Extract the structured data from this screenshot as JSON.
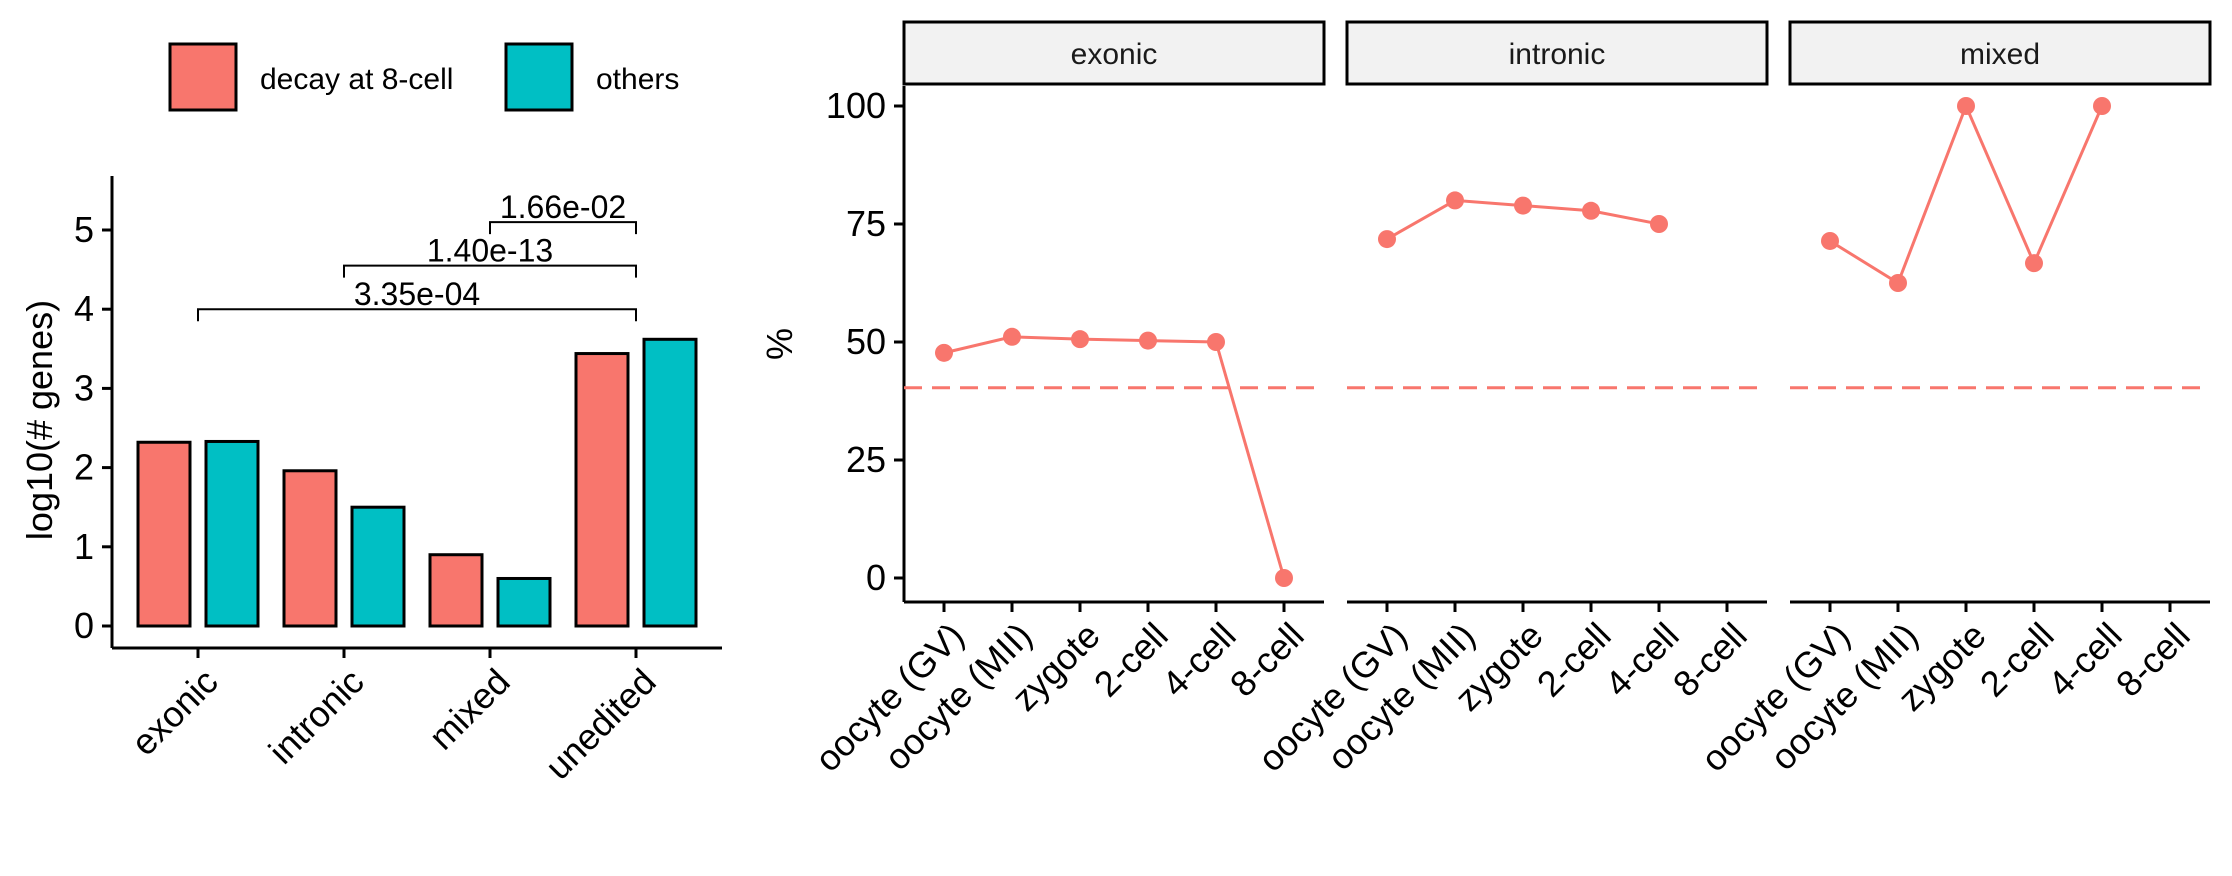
{
  "legend": {
    "items": [
      {
        "label": "decay at 8-cell",
        "color": "#F8766D"
      },
      {
        "label": "others",
        "color": "#00BFC4"
      }
    ]
  },
  "chart_data": [
    {
      "type": "bar",
      "xlabel": "",
      "ylabel": "log10(# genes)",
      "ylim": [
        0,
        5.6
      ],
      "yticks": [
        0,
        1,
        2,
        3,
        4,
        5
      ],
      "categories": [
        "exonic",
        "intronic",
        "mixed",
        "unedited"
      ],
      "series": [
        {
          "name": "decay at 8-cell",
          "color": "#F8766D",
          "values": [
            2.32,
            1.96,
            0.9,
            3.44
          ]
        },
        {
          "name": "others",
          "color": "#00BFC4",
          "values": [
            2.33,
            1.5,
            0.6,
            3.62
          ]
        }
      ],
      "annotations": [
        {
          "from": "mixed",
          "to": "unedited",
          "y": 5.1,
          "label": "1.66e-02"
        },
        {
          "from": "intronic",
          "to": "unedited",
          "y": 4.55,
          "label": "1.40e-13"
        },
        {
          "from": "exonic",
          "to": "unedited",
          "y": 4.0,
          "label": "3.35e-04"
        }
      ]
    },
    {
      "type": "line",
      "xlabel": "",
      "ylabel": "%",
      "ylim": [
        -5,
        110
      ],
      "yticks": [
        0,
        25,
        50,
        75,
        100
      ],
      "x": [
        "oocyte (GV)",
        "oocyte (MII)",
        "zygote",
        "2-cell",
        "4-cell",
        "8-cell"
      ],
      "reference_line": {
        "y": 40.3,
        "style": "dashed",
        "color": "#F8766D"
      },
      "color": "#F8766D",
      "panels": [
        {
          "label": "exonic",
          "values": [
            47.7,
            51.1,
            50.6,
            50.3,
            50.0,
            0
          ]
        },
        {
          "label": "intronic",
          "values": [
            71.8,
            80.0,
            78.9,
            77.8,
            75.0,
            null
          ]
        },
        {
          "label": "mixed",
          "values": [
            71.4,
            62.5,
            100,
            66.7,
            100,
            null
          ]
        }
      ]
    }
  ]
}
